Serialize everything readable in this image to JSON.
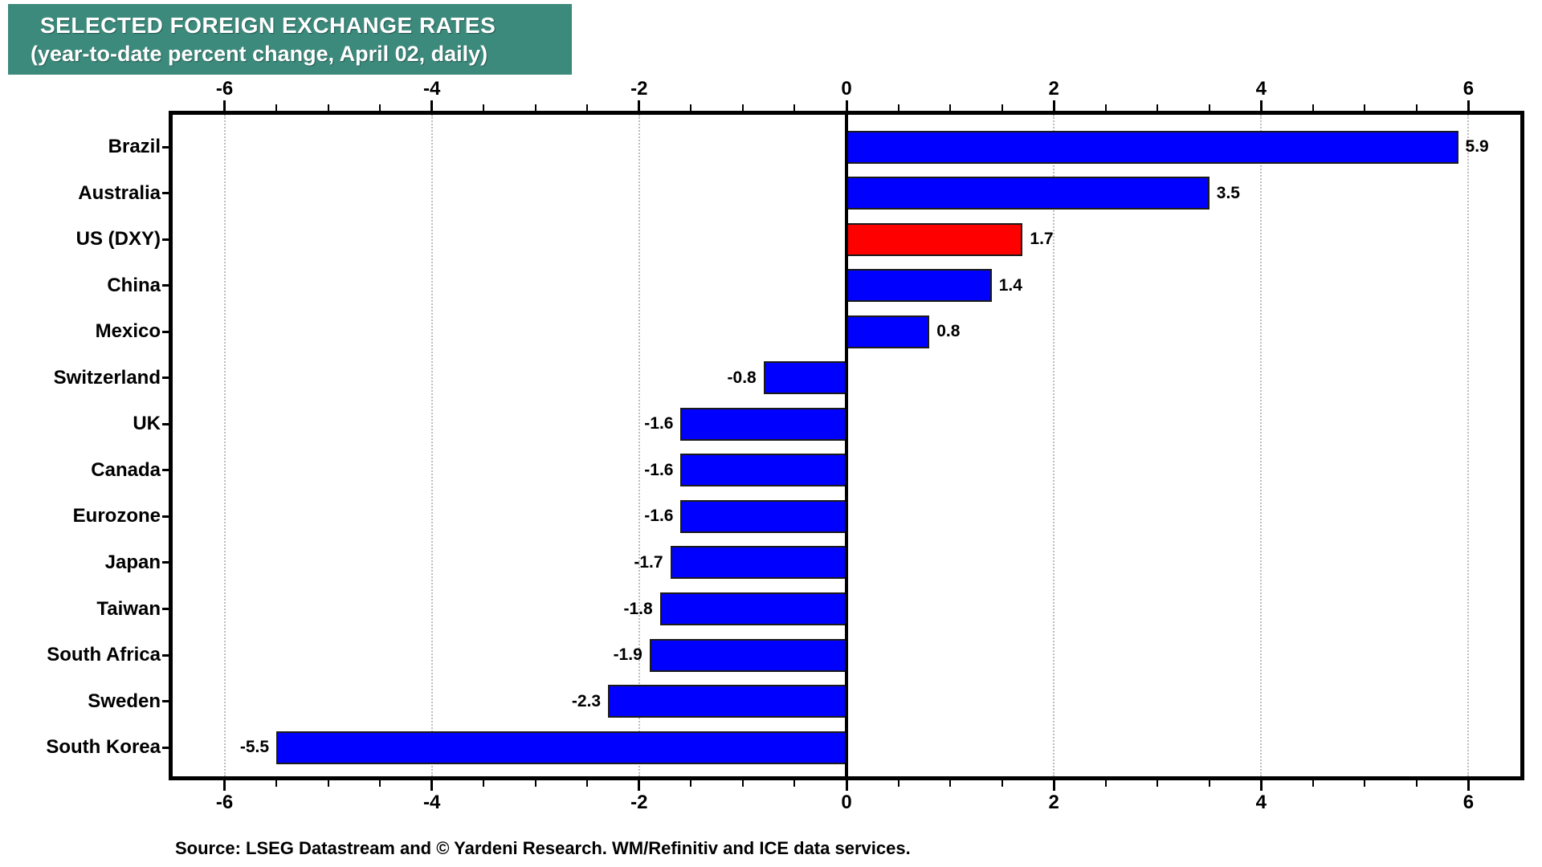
{
  "colors": {
    "title_bg": "#3C8A7C",
    "title_text": "#FFFFFF",
    "bar_blue": "#0000FE",
    "bar_red": "#FE0000",
    "bar_border": "#1A1A1A",
    "grid": "#BDBDBD",
    "axis": "#000000"
  },
  "chart_data": {
    "type": "bar",
    "orientation": "horizontal",
    "title": "SELECTED FOREIGN EXCHANGE RATES",
    "subtitle": "(year-to-date percent change, April 02, daily)",
    "categories": [
      "Brazil",
      "Australia",
      "US (DXY)",
      "China",
      "Mexico",
      "Switzerland",
      "UK",
      "Canada",
      "Eurozone",
      "Japan",
      "Taiwan",
      "South Africa",
      "Sweden",
      "South Korea"
    ],
    "values": [
      5.9,
      3.5,
      1.7,
      1.4,
      0.8,
      -0.8,
      -1.6,
      -1.6,
      -1.6,
      -1.7,
      -1.8,
      -1.9,
      -2.3,
      -5.5
    ],
    "value_labels": [
      "5.9",
      "3.5",
      "1.7",
      "1.4",
      "0.8",
      "-0.8",
      "-1.6",
      "-1.6",
      "-1.6",
      "-1.7",
      "-1.8",
      "-1.9",
      "-2.3",
      "-5.5"
    ],
    "bar_colors": [
      "#0000FE",
      "#0000FE",
      "#FE0000",
      "#0000FE",
      "#0000FE",
      "#0000FE",
      "#0000FE",
      "#0000FE",
      "#0000FE",
      "#0000FE",
      "#0000FE",
      "#0000FE",
      "#0000FE",
      "#0000FE"
    ],
    "x_ticks": [
      -6,
      -4,
      -2,
      0,
      2,
      4,
      6
    ],
    "x_tick_labels": [
      "-6",
      "-4",
      "-2",
      "0",
      "2",
      "4",
      "6"
    ],
    "minor_tick_step": 0.5,
    "xlim": [
      -6.5,
      6.5
    ],
    "xlabel": "",
    "ylabel": "",
    "grid": "vertical dotted at major ticks",
    "legend": "none",
    "source_note": "Source: LSEG Datastream and © Yardeni Research. WM/Refinitiv and ICE data services."
  }
}
